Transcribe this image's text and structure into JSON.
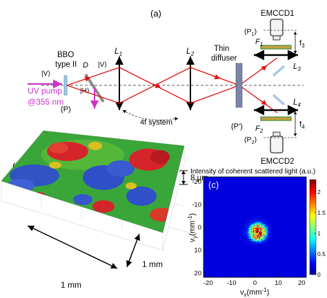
{
  "panel_a": {
    "label": "(a)",
    "crystal": {
      "line1": "BBO",
      "line2": "type II",
      "plane": "(P)"
    },
    "pump": {
      "line1": "UV pump",
      "line2": "@355 nm"
    },
    "polarization": {
      "V_top": "|V⟩",
      "V_right": "|V⟩",
      "H": "|H⟩"
    },
    "dichroic": "D",
    "lens1": {
      "main": "L",
      "sub": "1"
    },
    "lens2": {
      "main": "L",
      "sub": "2"
    },
    "lens3": {
      "main": "L",
      "sub": "3"
    },
    "lens4": {
      "main": "L",
      "sub": "4"
    },
    "system": "4f system",
    "diffuser": {
      "line1": "Thin",
      "line2": "diffuser",
      "plane": "(P')"
    },
    "camera1": "EMCCD1",
    "camera2": "EMCCD2",
    "plane1": {
      "main": "(P",
      "sub": "1",
      "end": ")"
    },
    "plane2": {
      "main": "(P",
      "sub": "2",
      "end": ")"
    },
    "filter1": {
      "main": "F",
      "sub": "1"
    },
    "filter2": {
      "main": "F",
      "sub": "2"
    },
    "focal3": {
      "main": "f",
      "sub": "3"
    },
    "focal4": {
      "main": "f",
      "sub": "4"
    }
  },
  "panel_b": {
    "label": "(b)",
    "height_scale": "8 μm",
    "x_scale": "1 mm",
    "y_scale": "1 mm"
  },
  "panel_c": {
    "label": "(c)",
    "title": "Intensity of coherent scattered light (a.u.)",
    "xlabel_main": "ν",
    "xlabel_sub": "x",
    "xlabel_unit": "(mm",
    "xlabel_exp": "-1",
    "xlabel_end": ")",
    "ylabel_main": "ν",
    "ylabel_sub": "y",
    "ylabel_unit": "(mm",
    "ylabel_exp": "-1",
    "ylabel_end": ")"
  },
  "chart_data": {
    "type": "heatmap",
    "title": "Intensity of coherent scattered light (a.u.)",
    "xlabel": "νx(mm-1)",
    "ylabel": "νy(mm-1)",
    "xlim": [
      -22,
      22
    ],
    "ylim": [
      -22,
      22
    ],
    "y_inverted": true,
    "x_ticks": [
      -20,
      -10,
      0,
      10,
      20
    ],
    "y_ticks": [
      -20,
      -10,
      0,
      10,
      20
    ],
    "colorbar": {
      "min": 0,
      "max": 2.3,
      "ticks": [
        0,
        0.5,
        1,
        1.5,
        2
      ]
    },
    "colormap": [
      "#00008f",
      "#0000ff",
      "#00ffff",
      "#ffff00",
      "#ff0000",
      "#800000"
    ],
    "background_value": 0.05,
    "speckle_blob": {
      "center": [
        1,
        2
      ],
      "radius": 4.5,
      "peak_value": 2.3
    }
  },
  "colors": {
    "beam_red": "#e01010",
    "pump_magenta": "#cc33cc",
    "dashed_axis": "#555555",
    "surface_red": "#d4262a",
    "surface_green": "#3aa63a",
    "surface_blue": "#2f4fc8"
  }
}
